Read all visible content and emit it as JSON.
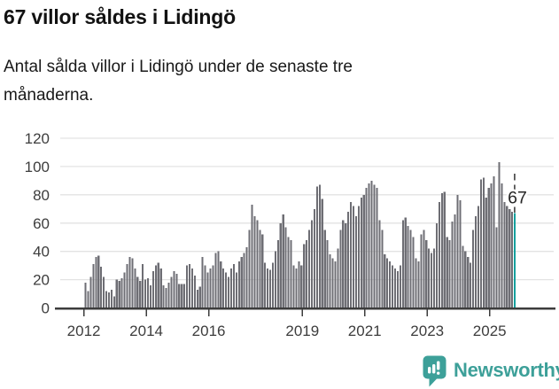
{
  "header": {
    "title": "67 villor såldes i Lidingö",
    "subtitle": "Antal sålda villor i Lidingö under de senaste tre månaderna."
  },
  "footer": {
    "brand": "Newsworthy"
  },
  "colors": {
    "bar": "#6e6e74",
    "accent_teal": "#12a09d",
    "brand_teal": "#3da099",
    "axis_text": "#3d3d3d",
    "axis_line": "#3c3c3c",
    "grid": "#e3e3e3",
    "annotation_line": "#4a4a4a",
    "annotation_text": "#262626",
    "icon_bars": "#ffffff"
  },
  "chart_data": {
    "type": "bar",
    "title": "67 villor såldes i Lidingö",
    "subtitle": "Antal sålda villor i Lidingö under de senaste tre månaderna.",
    "frequency": "monthly",
    "x_start": "2012-01",
    "x_end": "2025-10",
    "ylim": [
      0,
      120
    ],
    "yticks": [
      0,
      20,
      40,
      60,
      80,
      100,
      120
    ],
    "xtick_years": [
      2012,
      2014,
      2016,
      2019,
      2021,
      2023,
      2025
    ],
    "grid": true,
    "annotation": "67",
    "highlight_last_value": 67,
    "values": [
      18,
      12,
      22,
      31,
      36,
      37,
      29,
      22,
      12,
      11,
      13,
      8,
      20,
      19,
      21,
      25,
      31,
      36,
      35,
      28,
      22,
      19,
      31,
      20,
      21,
      16,
      26,
      30,
      32,
      28,
      16,
      14,
      18,
      22,
      26,
      24,
      17,
      17,
      17,
      30,
      31,
      28,
      23,
      13,
      15,
      36,
      30,
      25,
      28,
      30,
      39,
      40,
      33,
      28,
      25,
      22,
      28,
      31,
      25,
      33,
      36,
      39,
      43,
      55,
      73,
      65,
      62,
      55,
      52,
      32,
      28,
      27,
      32,
      40,
      48,
      60,
      66,
      57,
      50,
      48,
      30,
      28,
      33,
      30,
      45,
      48,
      55,
      62,
      70,
      86,
      87,
      77,
      55,
      48,
      38,
      35,
      33,
      42,
      55,
      62,
      60,
      68,
      75,
      72,
      65,
      72,
      78,
      80,
      85,
      88,
      90,
      87,
      85,
      62,
      55,
      38,
      35,
      33,
      30,
      28,
      26,
      30,
      62,
      64,
      58,
      55,
      50,
      35,
      33,
      52,
      55,
      48,
      42,
      39,
      42,
      60,
      75,
      81,
      82,
      50,
      48,
      61,
      66,
      80,
      76,
      44,
      40,
      36,
      32,
      55,
      65,
      72,
      91,
      92,
      78,
      85,
      88,
      93,
      57,
      103,
      88,
      75,
      72,
      70,
      68,
      67
    ]
  }
}
